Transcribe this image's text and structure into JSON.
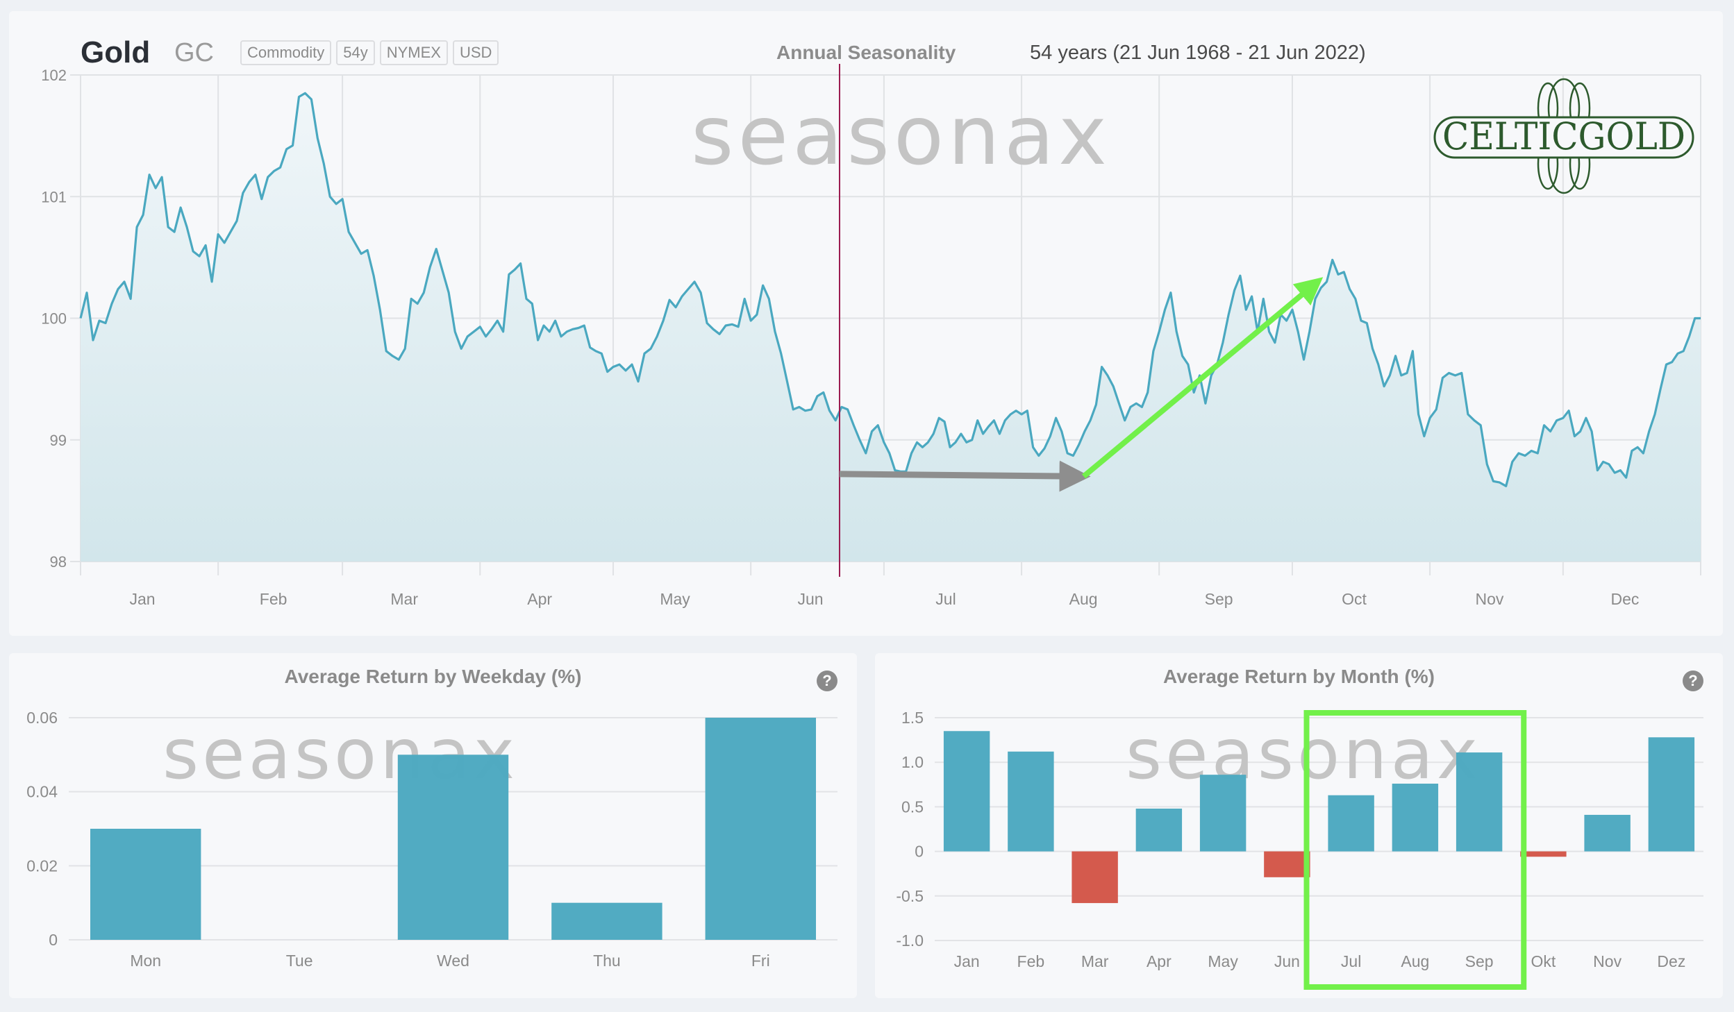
{
  "header": {
    "title": "Gold",
    "symbol": "GC",
    "badges": [
      "Commodity",
      "54y",
      "NYMEX",
      "USD"
    ],
    "chart_label": "Annual Seasonality",
    "range": "54 years (21 Jun 1968 - 21 Jun 2022)"
  },
  "watermark": "seasonax",
  "logo_text": "CELTICGOLD",
  "colors": {
    "line": "#4aa8c0",
    "bar_pos": "#4ea9c1",
    "bar_neg": "#d35749",
    "today_line": "#9b1b4f",
    "highlight": "#72f04a",
    "arrow_gray": "#8e8e8e",
    "arrow_green": "#72f04a",
    "logo": "#2d5a2d"
  },
  "chart_data": [
    {
      "type": "area",
      "title": "Annual Seasonality",
      "ylim": [
        98,
        102
      ],
      "yticks": [
        "102",
        "101",
        "100",
        "99",
        "98"
      ],
      "xticks": [
        "Jan",
        "Feb",
        "Mar",
        "Apr",
        "May",
        "Jun",
        "Jul",
        "Aug",
        "Sep",
        "Oct",
        "Nov",
        "Dec"
      ],
      "grid": true,
      "current_date": "21 Jun",
      "annotations": [
        {
          "type": "arrow",
          "color": "gray",
          "from": [
            "Jun 21",
            98.72
          ],
          "to": [
            "Aug 14",
            98.7
          ]
        },
        {
          "type": "arrow",
          "color": "green",
          "from": [
            "Aug 14",
            98.7
          ],
          "to": [
            "Oct 7",
            100.3
          ]
        }
      ],
      "series_by_month": {
        "Jan": [
          100.0,
          100.21,
          99.82,
          99.98,
          99.96,
          100.12,
          100.24,
          100.3,
          100.16,
          100.75,
          100.85,
          101.18,
          101.07,
          101.16,
          100.75,
          100.71,
          100.91,
          100.75,
          100.55,
          100.51,
          100.6,
          100.3
        ],
        "Feb": [
          100.69,
          100.62,
          100.71,
          100.8,
          101.03,
          101.12,
          101.18,
          100.98,
          101.16,
          101.21,
          101.24,
          101.39,
          101.42,
          101.82,
          101.85,
          101.8,
          101.48,
          101.27,
          101.0,
          100.94
        ],
        "Mar": [
          100.98,
          100.71,
          100.62,
          100.53,
          100.56,
          100.35,
          100.07,
          99.73,
          99.69,
          99.66,
          99.75,
          100.16,
          100.12,
          100.21,
          100.42,
          100.57,
          100.39,
          100.21,
          99.89,
          99.75,
          99.85,
          99.89
        ],
        "Apr": [
          99.93,
          99.85,
          99.91,
          99.98,
          99.89,
          100.36,
          100.4,
          100.45,
          100.16,
          100.12,
          99.82,
          99.94,
          99.89,
          99.98,
          99.85,
          99.89,
          99.91,
          99.92,
          99.94,
          99.76,
          99.73,
          99.71,
          99.56
        ],
        "May": [
          99.6,
          99.62,
          99.57,
          99.62,
          99.48,
          99.71,
          99.75,
          99.85,
          99.98,
          100.15,
          100.09,
          100.18,
          100.24,
          100.3,
          100.21,
          99.96,
          99.91,
          99.87,
          99.94,
          99.95,
          99.93,
          100.16
        ],
        "Jun": [
          99.98,
          100.03,
          100.27,
          100.16,
          99.89,
          99.71,
          99.48,
          99.25,
          99.27,
          99.24,
          99.25,
          99.36,
          99.39,
          99.24,
          99.16,
          99.27,
          99.25,
          99.12,
          99.0,
          98.89,
          99.07,
          99.12
        ],
        "Jul": [
          98.98,
          98.89,
          98.75,
          98.74,
          98.74,
          98.89,
          98.98,
          98.94,
          98.98,
          99.05,
          99.18,
          99.15,
          98.94,
          98.98,
          99.05,
          98.98,
          99.0,
          99.16,
          99.05,
          99.11,
          99.16,
          99.05,
          99.16,
          99.21,
          99.24
        ],
        "Aug": [
          99.21,
          99.24,
          98.94,
          98.87,
          98.93,
          99.03,
          99.18,
          99.07,
          98.89,
          98.87,
          98.96,
          99.07,
          99.16,
          99.29,
          99.6,
          99.53,
          99.44,
          99.3,
          99.16,
          99.27,
          99.3,
          99.27,
          99.39,
          99.73
        ],
        "Sep": [
          99.89,
          100.07,
          100.21,
          99.89,
          99.69,
          99.62,
          99.39,
          99.53,
          99.3,
          99.53,
          99.62,
          99.8,
          100.03,
          100.23,
          100.35,
          100.07,
          100.18,
          99.89,
          100.16,
          99.89,
          99.8,
          100.03,
          99.98
        ],
        "Oct": [
          100.07,
          99.89,
          99.66,
          99.89,
          100.16,
          100.25,
          100.3,
          100.48,
          100.36,
          100.38,
          100.24,
          100.16,
          99.98,
          99.96,
          99.75,
          99.62,
          99.44,
          99.53,
          99.69,
          99.53,
          99.55,
          99.73,
          99.21,
          99.03
        ],
        "Nov": [
          99.18,
          99.25,
          99.51,
          99.55,
          99.53,
          99.55,
          99.21,
          99.16,
          99.12,
          98.8,
          98.66,
          98.65,
          98.62,
          98.82,
          98.89,
          98.87,
          98.91,
          98.89,
          99.12,
          99.07,
          99.16
        ],
        "Dec": [
          99.18,
          99.24,
          99.03,
          99.07,
          99.18,
          99.07,
          98.75,
          98.82,
          98.8,
          98.73,
          98.75,
          98.69,
          98.91,
          98.94,
          98.89,
          99.07,
          99.21,
          99.42,
          99.62,
          99.64,
          99.71,
          99.73,
          99.85,
          100.0
        ]
      }
    },
    {
      "type": "bar",
      "title": "Average Return by Weekday (%)",
      "categories": [
        "Mon",
        "Tue",
        "Wed",
        "Thu",
        "Fri"
      ],
      "values": [
        0.03,
        0.0,
        0.05,
        0.01,
        0.06
      ],
      "yticks": [
        "0.06",
        "0.04",
        "0.02",
        "0"
      ],
      "ylim": [
        0,
        0.06
      ],
      "grid": true,
      "help": "?"
    },
    {
      "type": "bar",
      "title": "Average Return by Month (%)",
      "categories": [
        "Jan",
        "Feb",
        "Mar",
        "Apr",
        "May",
        "Jun",
        "Jul",
        "Aug",
        "Sep",
        "Okt",
        "Nov",
        "Dez"
      ],
      "values": [
        1.35,
        1.12,
        -0.58,
        0.48,
        0.86,
        -0.29,
        0.63,
        0.76,
        1.11,
        -0.06,
        0.41,
        1.28
      ],
      "yticks": [
        "1.5",
        "1.0",
        "0.5",
        "0",
        "-0.5",
        "-1.0"
      ],
      "ylim": [
        -1.0,
        1.5
      ],
      "grid": true,
      "highlight": [
        "Jul",
        "Sep"
      ],
      "help": "?"
    }
  ]
}
